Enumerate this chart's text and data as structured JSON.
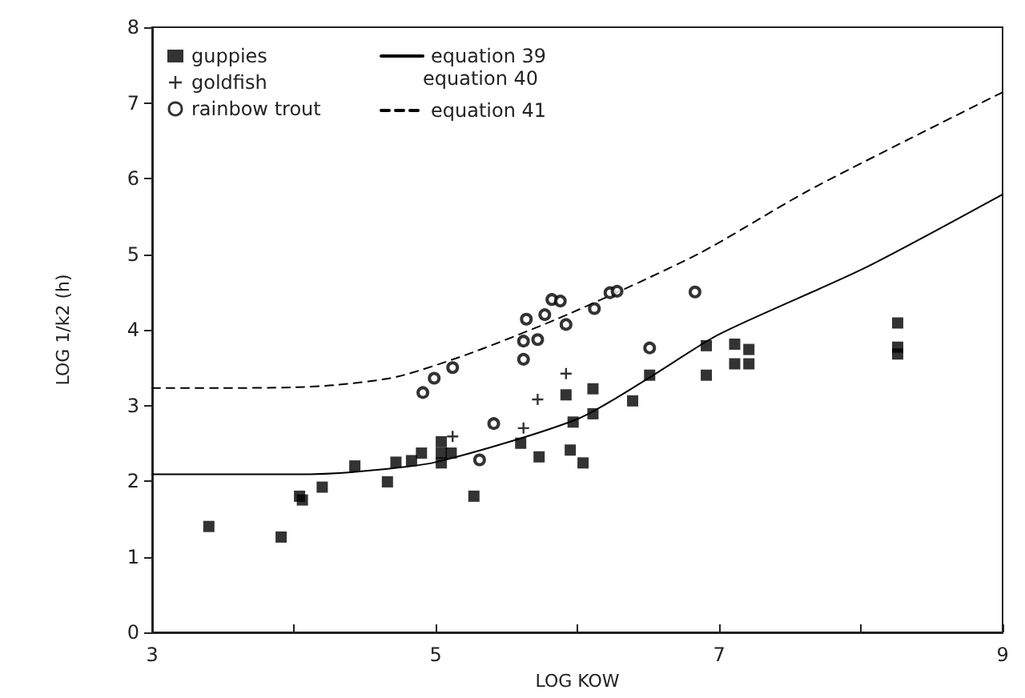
{
  "chart_data": {
    "type": "scatter",
    "xlabel": "LOG KOW",
    "ylabel": "LOG 1/k2 (h)",
    "xlim": [
      3,
      9
    ],
    "xticks": [
      3,
      {
        "value": 4,
        "label": null
      },
      5,
      {
        "value": 6,
        "label": null
      },
      7,
      {
        "value": 8,
        "label": null
      },
      9
    ],
    "ylim": [
      0,
      8
    ],
    "yticks": [
      0,
      1,
      2,
      3,
      4,
      5,
      6,
      7,
      8
    ],
    "grid": false,
    "legend": "top left",
    "annotations": [
      "equation 40"
    ],
    "series": [
      {
        "name": "guppies",
        "marker": "square",
        "color": "#000000",
        "x": [
          3.4,
          3.91,
          4.04,
          4.06,
          4.2,
          4.43,
          4.66,
          4.72,
          4.83,
          4.9,
          5.04,
          5.04,
          5.04,
          5.11,
          5.27,
          5.6,
          5.73,
          5.92,
          5.95,
          5.97,
          6.04,
          6.11,
          6.11,
          6.39,
          6.51,
          6.91,
          6.91,
          7.11,
          7.11,
          7.21,
          7.21,
          8.26,
          8.26,
          8.26
        ],
        "values": [
          1.4,
          1.26,
          1.8,
          1.75,
          1.92,
          2.2,
          1.99,
          2.25,
          2.27,
          2.37,
          2.52,
          2.37,
          2.24,
          2.37,
          1.8,
          2.5,
          2.32,
          3.14,
          2.41,
          2.78,
          2.24,
          2.89,
          3.22,
          3.06,
          3.4,
          3.79,
          3.4,
          3.81,
          3.55,
          3.74,
          3.55,
          4.09,
          3.77,
          3.68
        ]
      },
      {
        "name": "goldfish",
        "marker": "cross",
        "color": "#000000",
        "x": [
          5.12,
          5.62,
          5.72,
          5.92
        ],
        "values": [
          2.59,
          2.7,
          3.08,
          3.42
        ]
      },
      {
        "name": "rainbow trout",
        "marker": "circle",
        "color": "#000000",
        "x": [
          4.91,
          4.99,
          5.12,
          5.31,
          5.41,
          5.62,
          5.62,
          5.72,
          5.64,
          5.77,
          5.82,
          5.88,
          5.92,
          6.12,
          6.23,
          6.28,
          6.51,
          6.83
        ],
        "values": [
          3.17,
          3.36,
          3.5,
          2.28,
          2.76,
          3.61,
          3.85,
          3.87,
          4.14,
          4.2,
          4.4,
          4.38,
          4.07,
          4.28,
          4.49,
          4.51,
          3.76,
          4.5
        ]
      },
      {
        "name": "equation 39",
        "type": "line",
        "marker": "none",
        "line_style": "solid",
        "color": "#000000",
        "x": [
          3,
          3.5,
          4.0,
          4.42,
          5.0,
          6.0,
          6.51,
          7.0,
          8.02,
          9
        ],
        "values": [
          2.09,
          2.09,
          2.09,
          2.12,
          2.25,
          2.82,
          3.37,
          3.94,
          4.81,
          5.79
        ]
      },
      {
        "name": "equation 41",
        "type": "line",
        "marker": "none",
        "line_style": "dashed",
        "color": "#000000",
        "x": [
          3,
          3.5,
          4.0,
          4.3,
          4.73,
          5.26,
          5.94,
          6.85,
          7.61,
          8.36,
          9
        ],
        "values": [
          3.23,
          3.23,
          3.24,
          3.27,
          3.38,
          3.7,
          4.21,
          5.0,
          5.82,
          6.54,
          7.14
        ]
      }
    ]
  }
}
